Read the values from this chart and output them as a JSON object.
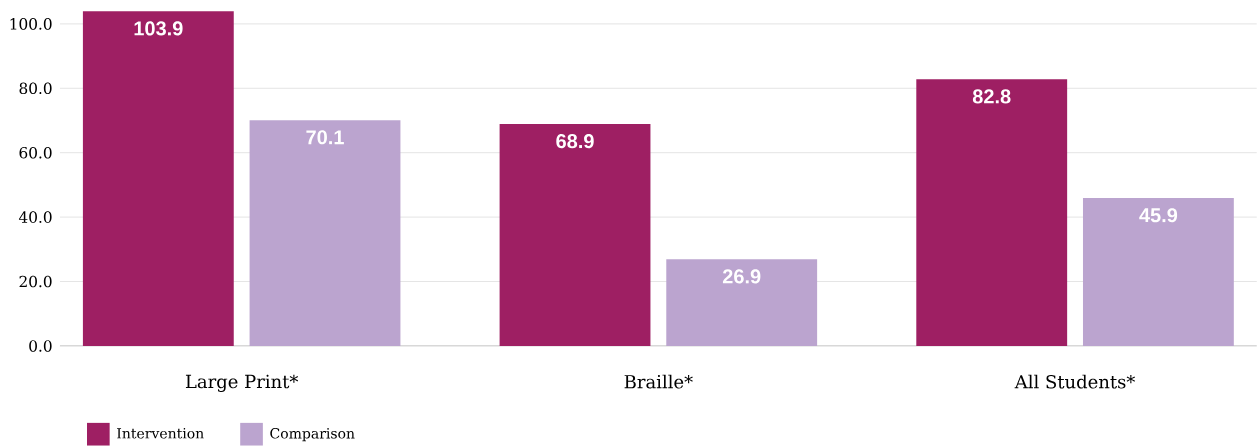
{
  "chart_data": {
    "type": "bar",
    "categories": [
      "Large Print*",
      "Braille*",
      "All Students*"
    ],
    "series": [
      {
        "name": "Intervention",
        "color": "#9e1f63",
        "values": [
          103.9,
          68.9,
          82.8
        ]
      },
      {
        "name": "Comparison",
        "color": "#bba4cf",
        "values": [
          70.1,
          26.9,
          45.9
        ]
      }
    ],
    "ylim": [
      0,
      104
    ],
    "yticks": [
      {
        "value": 0,
        "label": "0.0"
      },
      {
        "value": 20,
        "label": "20.0"
      },
      {
        "value": 40,
        "label": "40.0"
      },
      {
        "value": 60,
        "label": "60.0"
      },
      {
        "value": 80,
        "label": "80.0"
      },
      {
        "value": 100,
        "label": "100.0"
      }
    ],
    "grid": "y",
    "legend": "bottom",
    "data_labels": true
  }
}
